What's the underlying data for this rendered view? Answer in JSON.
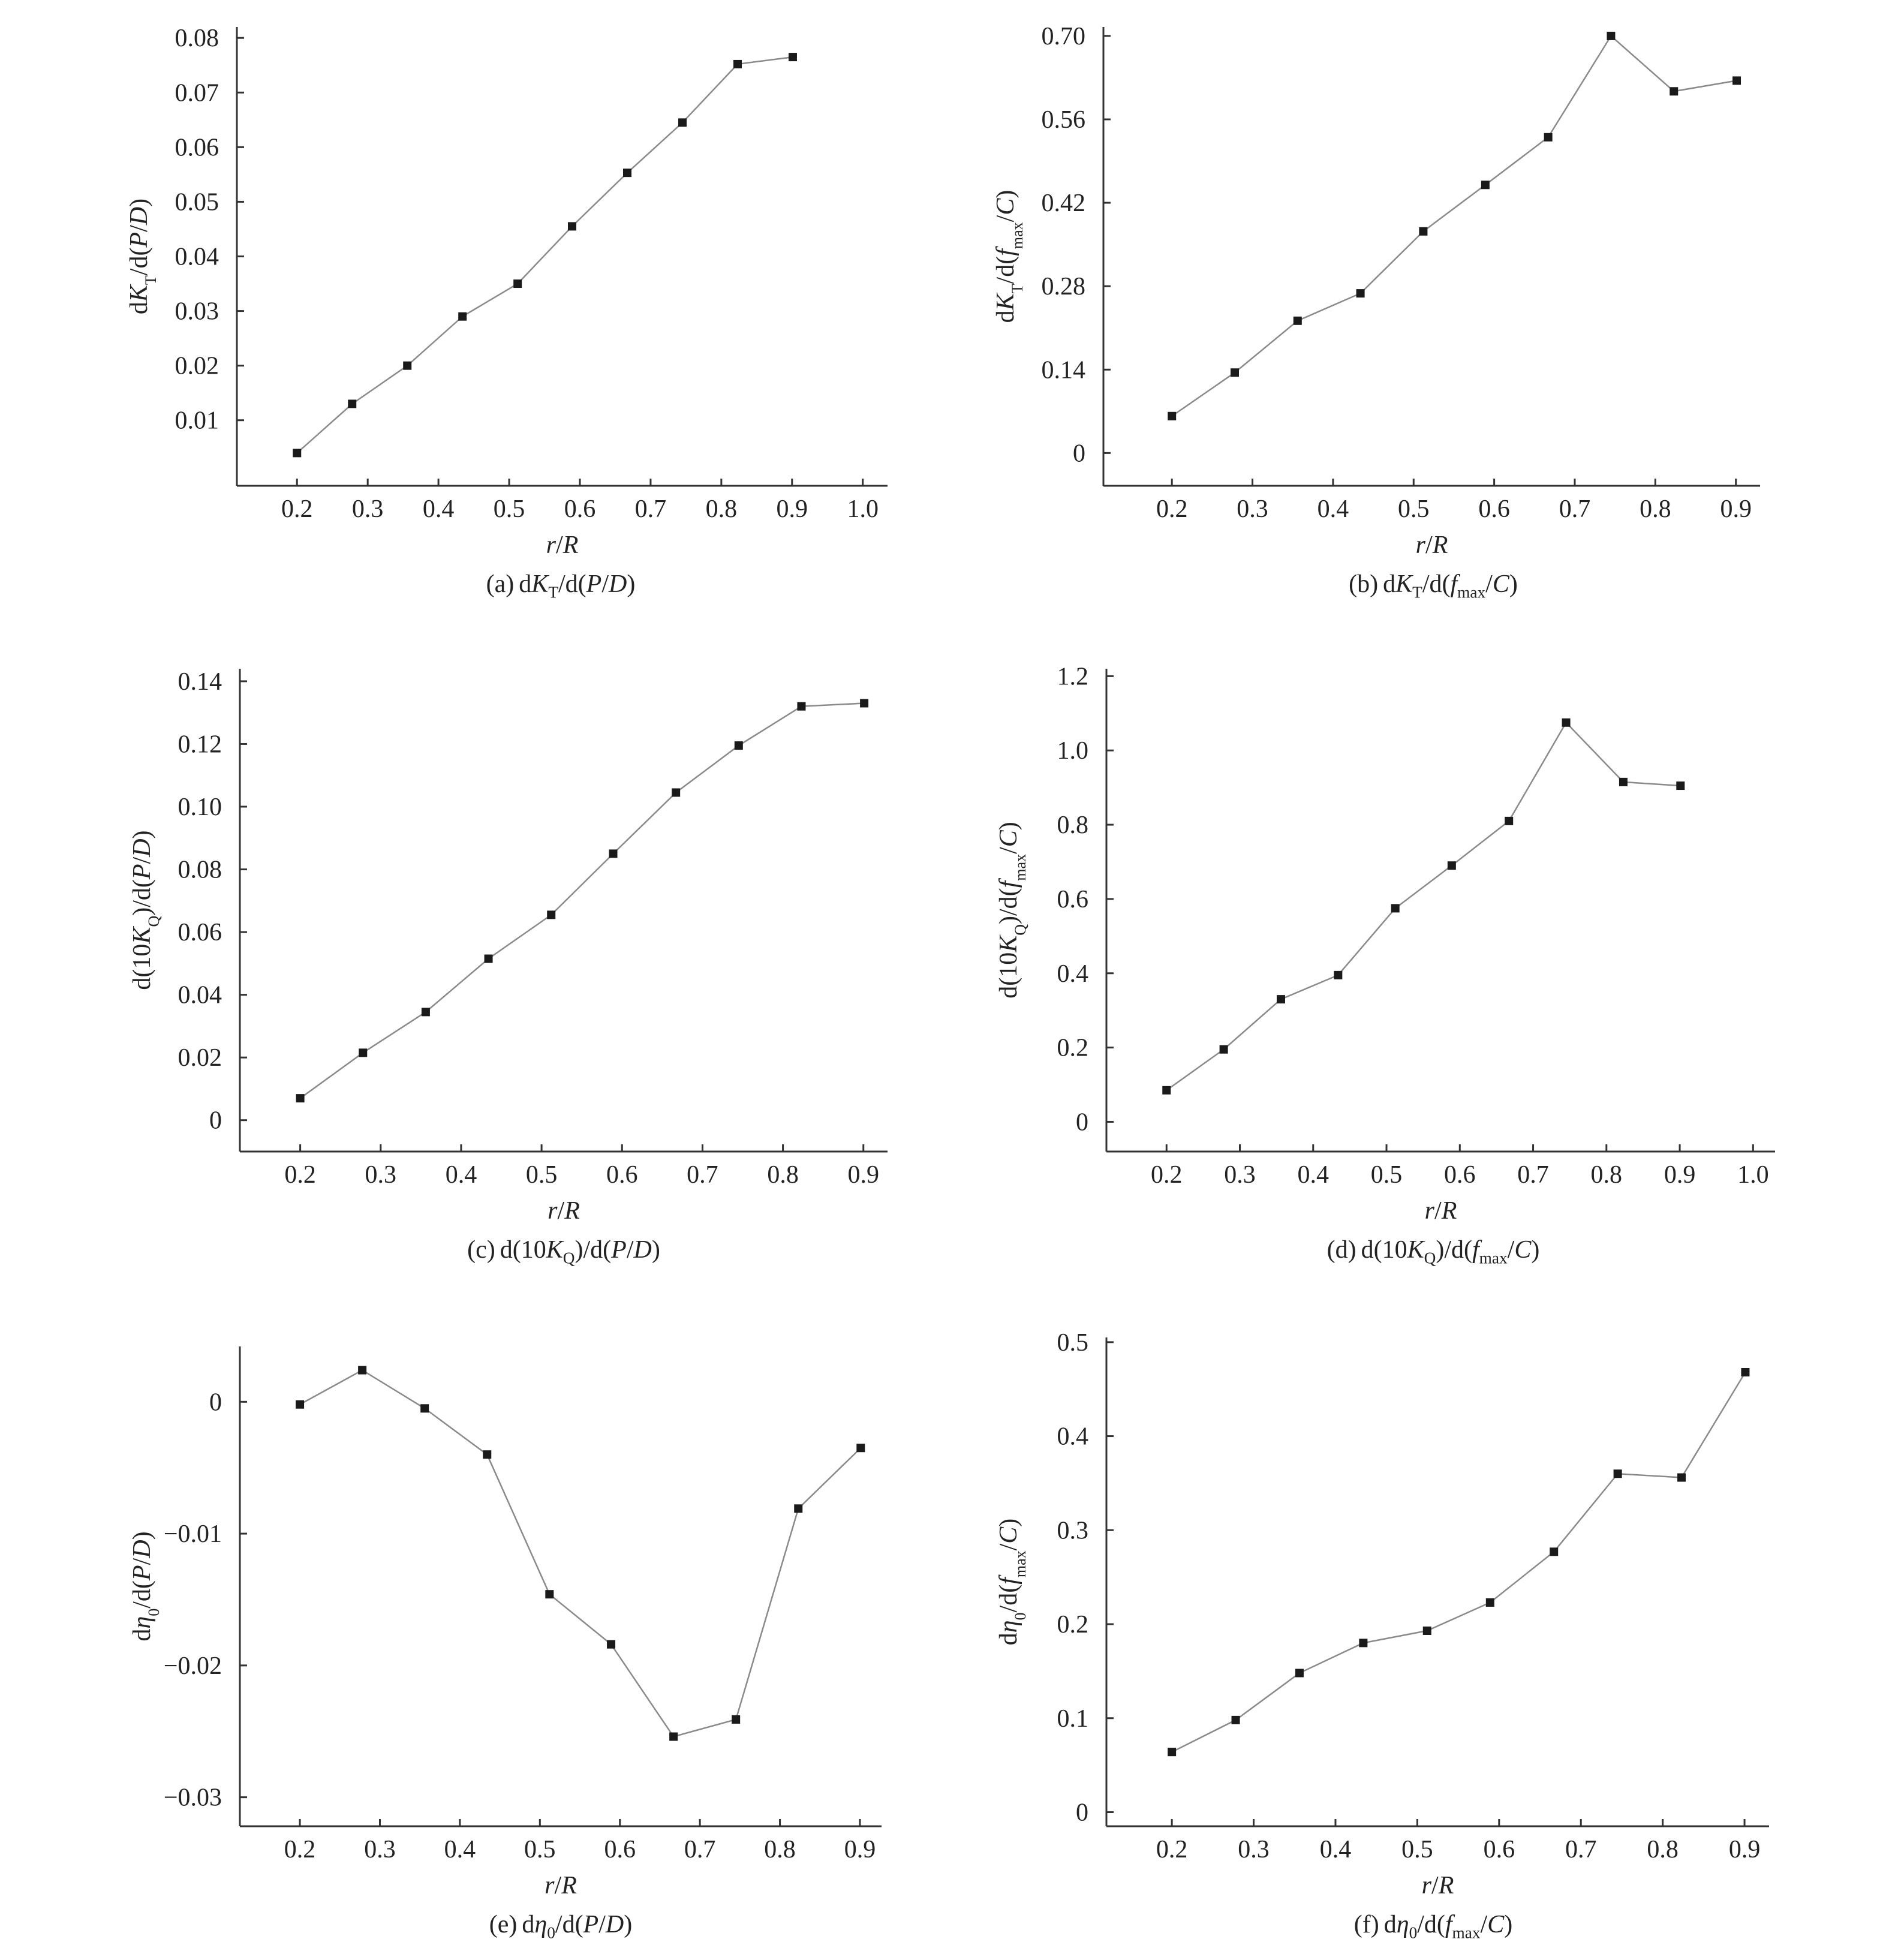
{
  "charts": [
    {
      "id": "a",
      "caption": {
        "label": "(a)",
        "text": "dK_T/d(P/D)"
      },
      "chart_data": {
        "type": "line",
        "xlabel": "r/R",
        "ylabel": "dK_T/d(P/D)",
        "xticks": [
          "0.2",
          "0.3",
          "0.4",
          "0.5",
          "0.6",
          "0.7",
          "0.8",
          "0.9",
          "1.0"
        ],
        "yticks": [
          "0.01",
          "0.02",
          "0.03",
          "0.04",
          "0.05",
          "0.06",
          "0.07",
          "0.08"
        ],
        "xlim": [
          0.115,
          1.035
        ],
        "ylim": [
          -0.002,
          0.082
        ],
        "x": [
          0.2,
          0.278,
          0.356,
          0.434,
          0.512,
          0.589,
          0.667,
          0.745,
          0.823,
          0.901
        ],
        "y": [
          0.004,
          0.013,
          0.02,
          0.029,
          0.035,
          0.0455,
          0.0553,
          0.0645,
          0.0752,
          0.0765
        ]
      }
    },
    {
      "id": "b",
      "caption": {
        "label": "(b)",
        "text": "dK_T/d(f_max/C)"
      },
      "chart_data": {
        "type": "line",
        "xlabel": "r/R",
        "ylabel": "dK_T/d(f_max/C)",
        "xticks": [
          "0.2",
          "0.3",
          "0.4",
          "0.5",
          "0.6",
          "0.7",
          "0.8",
          "0.9"
        ],
        "yticks": [
          "0",
          "0.14",
          "0.28",
          "0.42",
          "0.56",
          "0.70"
        ],
        "xlim": [
          0.115,
          0.93
        ],
        "ylim": [
          -0.055,
          0.715
        ],
        "x": [
          0.2,
          0.278,
          0.356,
          0.434,
          0.512,
          0.589,
          0.667,
          0.745,
          0.823,
          0.901
        ],
        "y": [
          0.062,
          0.135,
          0.222,
          0.268,
          0.372,
          0.45,
          0.53,
          0.7,
          0.607,
          0.625
        ]
      }
    },
    {
      "id": "c",
      "caption": {
        "label": "(c)",
        "text": "d(10K_Q)/d(P/D)"
      },
      "chart_data": {
        "type": "line",
        "xlabel": "r/R",
        "ylabel": "d(10K_Q)/d(P/D)",
        "xticks": [
          "0.2",
          "0.3",
          "0.4",
          "0.5",
          "0.6",
          "0.7",
          "0.8",
          "0.9"
        ],
        "yticks": [
          "0",
          "0.02",
          "0.04",
          "0.06",
          "0.08",
          "0.10",
          "0.12",
          "0.14"
        ],
        "xlim": [
          0.125,
          0.93
        ],
        "ylim": [
          -0.01,
          0.144
        ],
        "x": [
          0.2,
          0.278,
          0.356,
          0.434,
          0.512,
          0.589,
          0.667,
          0.745,
          0.823,
          0.901
        ],
        "y": [
          0.007,
          0.0215,
          0.0345,
          0.0515,
          0.0655,
          0.085,
          0.1045,
          0.1195,
          0.132,
          0.133
        ]
      }
    },
    {
      "id": "d",
      "caption": {
        "label": "(d)",
        "text": "d(10K_Q)/d(f_max/C)"
      },
      "chart_data": {
        "type": "line",
        "xlabel": "r/R",
        "ylabel": "d(10K_Q)/d(f_max/C)",
        "xticks": [
          "0.2",
          "0.3",
          "0.4",
          "0.5",
          "0.6",
          "0.7",
          "0.8",
          "0.9",
          "1.0"
        ],
        "yticks": [
          "0",
          "0.2",
          "0.4",
          "0.6",
          "0.8",
          "1.0",
          "1.2"
        ],
        "xlim": [
          0.118,
          1.03
        ],
        "ylim": [
          -0.08,
          1.22
        ],
        "x": [
          0.2,
          0.278,
          0.356,
          0.434,
          0.512,
          0.589,
          0.667,
          0.745,
          0.823,
          0.901
        ],
        "y": [
          0.085,
          0.195,
          0.33,
          0.395,
          0.575,
          0.69,
          0.81,
          1.075,
          0.915,
          0.905
        ]
      }
    },
    {
      "id": "e",
      "caption": {
        "label": "(e)",
        "text": "dη_0/d(P/D)"
      },
      "chart_data": {
        "type": "line",
        "xlabel": "r/R",
        "ylabel": "dη_0/d(P/D)",
        "xticks": [
          "0.2",
          "0.3",
          "0.4",
          "0.5",
          "0.6",
          "0.7",
          "0.8",
          "0.9"
        ],
        "yticks": [
          "-0.03",
          "-0.02",
          "-0.01",
          "0"
        ],
        "xlim": [
          0.125,
          0.927
        ],
        "ylim": [
          -0.0322,
          0.0042
        ],
        "x": [
          0.2,
          0.278,
          0.356,
          0.434,
          0.512,
          0.589,
          0.667,
          0.745,
          0.823,
          0.901
        ],
        "y": [
          -0.0002,
          0.0024,
          -0.0005,
          -0.004,
          -0.0146,
          -0.0184,
          -0.0254,
          -0.0241,
          -0.0081,
          -0.0035
        ]
      }
    },
    {
      "id": "f",
      "caption": {
        "label": "(f)",
        "text": "dη_0/d(f_max/C)"
      },
      "chart_data": {
        "type": "line",
        "xlabel": "r/R",
        "ylabel": "dη_0/d(f_max/C)",
        "xticks": [
          "0.2",
          "0.3",
          "0.4",
          "0.5",
          "0.6",
          "0.7",
          "0.8",
          "0.9"
        ],
        "yticks": [
          "0",
          "0.1",
          "0.2",
          "0.3",
          "0.4",
          "0.5"
        ],
        "xlim": [
          0.12,
          0.93
        ],
        "ylim": [
          -0.015,
          0.505
        ],
        "x": [
          0.2,
          0.278,
          0.356,
          0.434,
          0.512,
          0.589,
          0.667,
          0.745,
          0.823,
          0.901
        ],
        "y": [
          0.064,
          0.098,
          0.148,
          0.18,
          0.193,
          0.223,
          0.277,
          0.36,
          0.356,
          0.468
        ]
      }
    }
  ]
}
